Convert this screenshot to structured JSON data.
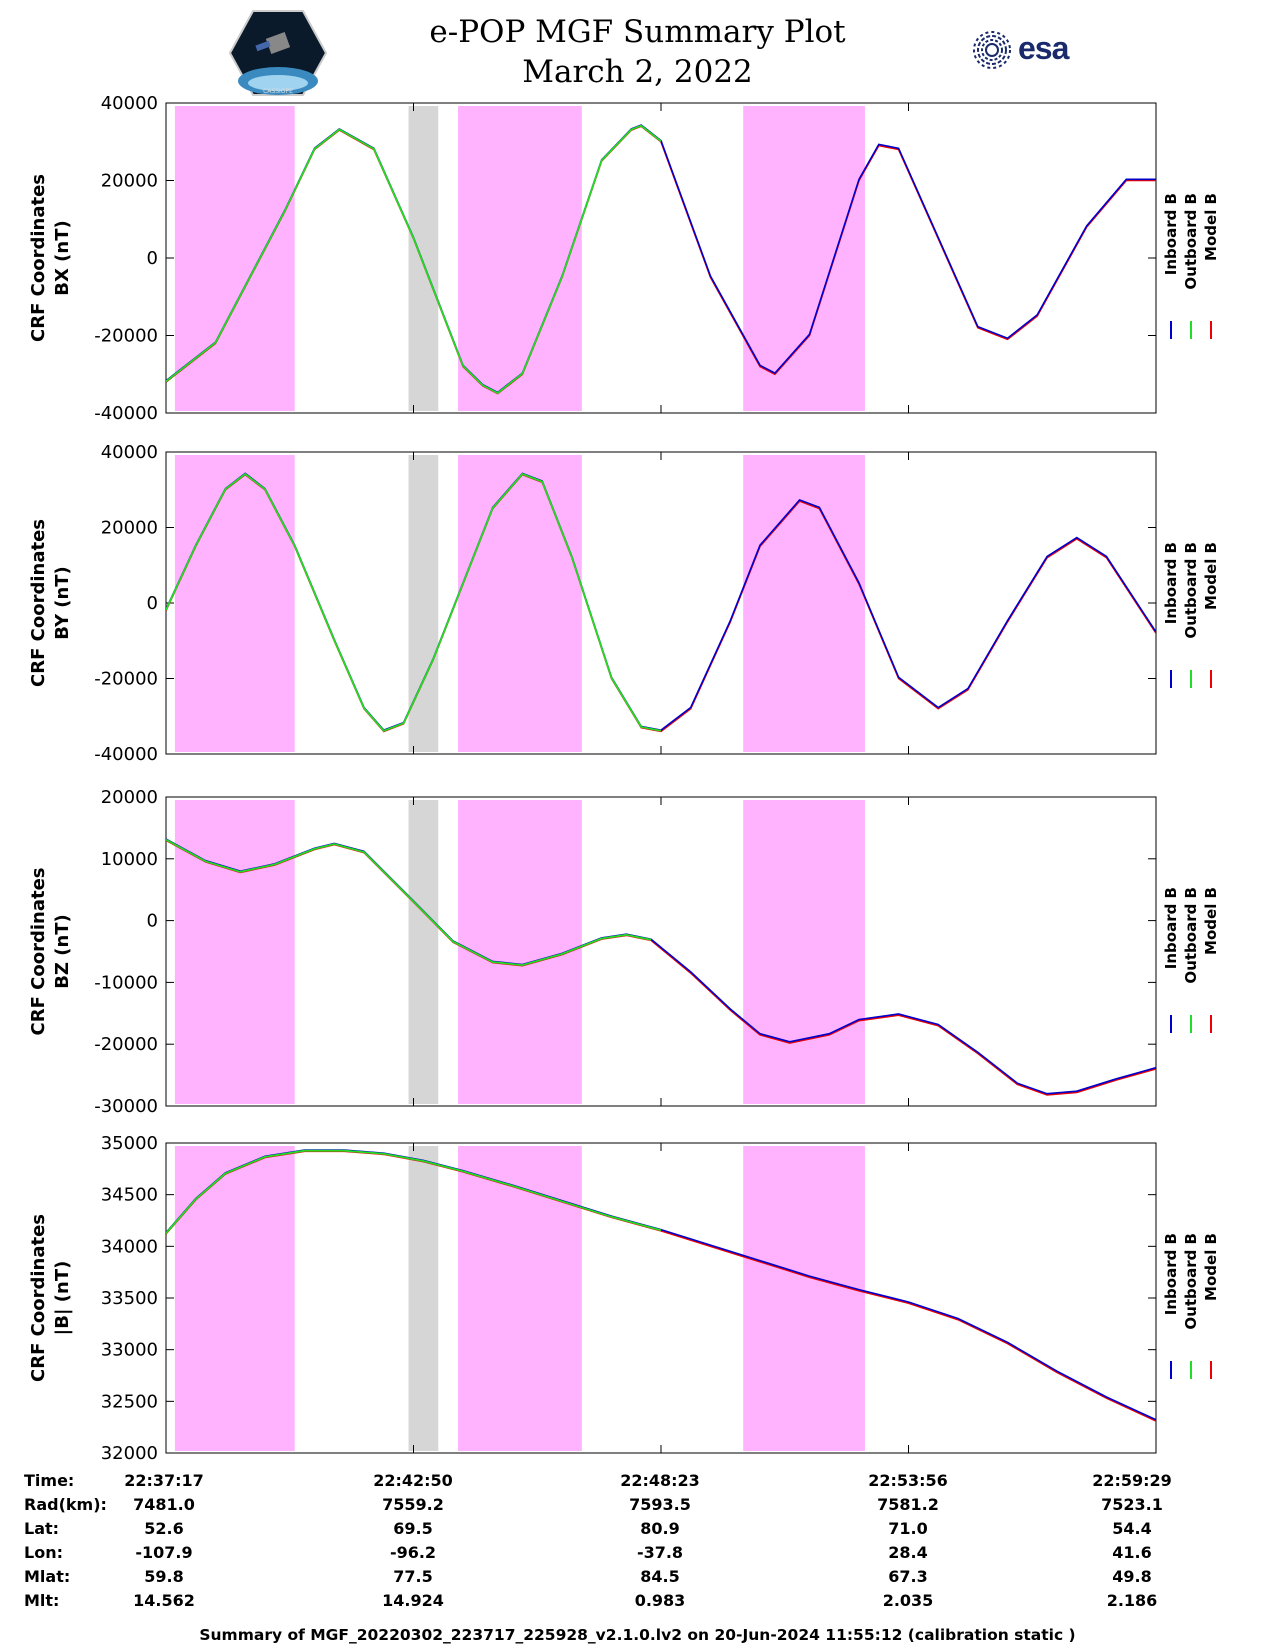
{
  "title": {
    "line1": "e-POP MGF Summary Plot",
    "line2": "March 2, 2022"
  },
  "logos": {
    "left": "CASSIOPE",
    "right": "esa"
  },
  "colors": {
    "inboard": "#0000cc",
    "outboard": "#22dd22",
    "model": "#ee0000",
    "shade_pink": "#ffb3ff",
    "shade_gray": "#d6d6d6"
  },
  "chart_data": [
    {
      "type": "line",
      "ylabel_line1": "CRF Coordinates",
      "ylabel_line2": "BX (nT)",
      "ylim": [
        -40000,
        40000
      ],
      "yticks": [
        -40000,
        -20000,
        0,
        20000,
        40000
      ],
      "ytick_labels": [
        "-40000",
        "-20000",
        "0",
        "20000",
        "40000"
      ],
      "series_points": [
        [
          0,
          -32000
        ],
        [
          0.05,
          -22000
        ],
        [
          0.12,
          12000
        ],
        [
          0.15,
          28000
        ],
        [
          0.175,
          33000
        ],
        [
          0.21,
          28000
        ],
        [
          0.25,
          5000
        ],
        [
          0.3,
          -28000
        ],
        [
          0.32,
          -33000
        ],
        [
          0.335,
          -35000
        ],
        [
          0.36,
          -30000
        ],
        [
          0.4,
          -5000
        ],
        [
          0.44,
          25000
        ],
        [
          0.47,
          33000
        ],
        [
          0.48,
          34000
        ],
        [
          0.5,
          30000
        ],
        [
          0.55,
          -5000
        ],
        [
          0.6,
          -28000
        ],
        [
          0.615,
          -30000
        ],
        [
          0.65,
          -20000
        ],
        [
          0.7,
          20000
        ],
        [
          0.72,
          29000
        ],
        [
          0.74,
          28000
        ],
        [
          0.78,
          5000
        ],
        [
          0.82,
          -18000
        ],
        [
          0.85,
          -21000
        ],
        [
          0.88,
          -15000
        ],
        [
          0.93,
          8000
        ],
        [
          0.97,
          20000
        ],
        [
          1.0,
          20000
        ]
      ]
    },
    {
      "type": "line",
      "ylabel_line1": "CRF Coordinates",
      "ylabel_line2": "BY (nT)",
      "ylim": [
        -40000,
        40000
      ],
      "yticks": [
        -40000,
        -20000,
        0,
        20000,
        40000
      ],
      "ytick_labels": [
        "-40000",
        "-20000",
        "0",
        "20000",
        "40000"
      ],
      "series_points": [
        [
          0,
          -2000
        ],
        [
          0.03,
          15000
        ],
        [
          0.06,
          30000
        ],
        [
          0.08,
          34000
        ],
        [
          0.1,
          30000
        ],
        [
          0.13,
          15000
        ],
        [
          0.17,
          -10000
        ],
        [
          0.2,
          -28000
        ],
        [
          0.22,
          -34000
        ],
        [
          0.24,
          -32000
        ],
        [
          0.27,
          -15000
        ],
        [
          0.3,
          5000
        ],
        [
          0.33,
          25000
        ],
        [
          0.36,
          34000
        ],
        [
          0.38,
          32000
        ],
        [
          0.41,
          12000
        ],
        [
          0.45,
          -20000
        ],
        [
          0.48,
          -33000
        ],
        [
          0.5,
          -34000
        ],
        [
          0.53,
          -28000
        ],
        [
          0.57,
          -5000
        ],
        [
          0.6,
          15000
        ],
        [
          0.64,
          27000
        ],
        [
          0.66,
          25000
        ],
        [
          0.7,
          5000
        ],
        [
          0.74,
          -20000
        ],
        [
          0.78,
          -28000
        ],
        [
          0.81,
          -23000
        ],
        [
          0.85,
          -5000
        ],
        [
          0.89,
          12000
        ],
        [
          0.92,
          17000
        ],
        [
          0.95,
          12000
        ],
        [
          1.0,
          -8000
        ]
      ]
    },
    {
      "type": "line",
      "ylabel_line1": "CRF Coordinates",
      "ylabel_line2": "BZ (nT)",
      "ylim": [
        -30000,
        20000
      ],
      "yticks": [
        -30000,
        -20000,
        -10000,
        0,
        10000,
        20000
      ],
      "ytick_labels": [
        "-30000",
        "-20000",
        "-10000",
        "0",
        "10000",
        "20000"
      ],
      "series_points": [
        [
          0,
          13000
        ],
        [
          0.04,
          9500
        ],
        [
          0.075,
          7800
        ],
        [
          0.11,
          9000
        ],
        [
          0.15,
          11500
        ],
        [
          0.17,
          12300
        ],
        [
          0.2,
          11000
        ],
        [
          0.25,
          3000
        ],
        [
          0.29,
          -3500
        ],
        [
          0.33,
          -6800
        ],
        [
          0.36,
          -7300
        ],
        [
          0.4,
          -5500
        ],
        [
          0.44,
          -3000
        ],
        [
          0.465,
          -2400
        ],
        [
          0.49,
          -3200
        ],
        [
          0.53,
          -8500
        ],
        [
          0.57,
          -14500
        ],
        [
          0.6,
          -18500
        ],
        [
          0.63,
          -19800
        ],
        [
          0.67,
          -18500
        ],
        [
          0.7,
          -16200
        ],
        [
          0.74,
          -15300
        ],
        [
          0.78,
          -17000
        ],
        [
          0.82,
          -21500
        ],
        [
          0.86,
          -26500
        ],
        [
          0.89,
          -28200
        ],
        [
          0.92,
          -27800
        ],
        [
          0.96,
          -25800
        ],
        [
          1.0,
          -24000
        ]
      ]
    },
    {
      "type": "line",
      "ylabel_line1": "CRF Coordinates",
      "ylabel_line2": "|B| (nT)",
      "ylim": [
        32000,
        35000
      ],
      "yticks": [
        32000,
        32500,
        33000,
        33500,
        34000,
        34500,
        35000
      ],
      "ytick_labels": [
        "32000",
        "32500",
        "33000",
        "33500",
        "34000",
        "34500",
        "35000"
      ],
      "series_points": [
        [
          0,
          34120
        ],
        [
          0.03,
          34450
        ],
        [
          0.06,
          34700
        ],
        [
          0.1,
          34860
        ],
        [
          0.14,
          34920
        ],
        [
          0.18,
          34920
        ],
        [
          0.22,
          34890
        ],
        [
          0.26,
          34820
        ],
        [
          0.3,
          34720
        ],
        [
          0.35,
          34580
        ],
        [
          0.4,
          34430
        ],
        [
          0.45,
          34280
        ],
        [
          0.5,
          34150
        ],
        [
          0.55,
          34000
        ],
        [
          0.6,
          33850
        ],
        [
          0.65,
          33700
        ],
        [
          0.7,
          33570
        ],
        [
          0.75,
          33450
        ],
        [
          0.8,
          33290
        ],
        [
          0.85,
          33060
        ],
        [
          0.9,
          32780
        ],
        [
          0.95,
          32530
        ],
        [
          1.0,
          32310
        ]
      ]
    }
  ],
  "shade_bands": [
    {
      "x0": 0.009,
      "x1": 0.13,
      "kind": "pink"
    },
    {
      "x0": 0.245,
      "x1": 0.275,
      "kind": "gray"
    },
    {
      "x0": 0.295,
      "x1": 0.42,
      "kind": "pink"
    },
    {
      "x0": 0.583,
      "x1": 0.706,
      "kind": "pink"
    }
  ],
  "legend": [
    "Inboard B",
    "Outboard B",
    "Model B"
  ],
  "table": {
    "row_labels": [
      "Time:",
      "Rad(km):",
      "Lat:",
      "Lon:",
      "Mlat:",
      "Mlt:"
    ],
    "columns": [
      [
        "22:37:17",
        "7481.0",
        "52.6",
        "-107.9",
        "59.8",
        "14.562"
      ],
      [
        "22:42:50",
        "7559.2",
        "69.5",
        "-96.2",
        "77.5",
        "14.924"
      ],
      [
        "22:48:23",
        "7593.5",
        "80.9",
        "-37.8",
        "84.5",
        "0.983"
      ],
      [
        "22:53:56",
        "7581.2",
        "71.0",
        "28.4",
        "67.3",
        "2.035"
      ],
      [
        "22:59:29",
        "7523.1",
        "54.4",
        "41.6",
        "49.8",
        "2.186"
      ]
    ]
  },
  "footer": "Summary of MGF_20220302_223717_225928_v2.1.0.lv2 on 20-Jun-2024 11:55:12 (calibration static )"
}
